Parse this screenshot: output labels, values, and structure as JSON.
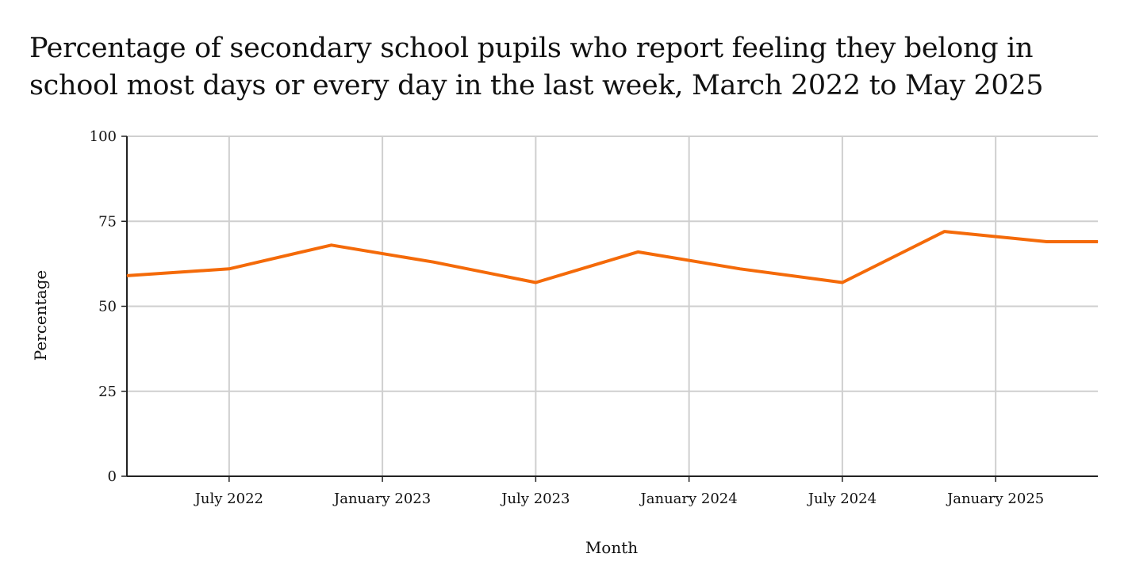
{
  "chart_data": {
    "type": "line",
    "title": "Percentage of secondary school pupils who report feeling they belong in school most days or every day in the last week, March 2022 to May 2025",
    "xlabel": "Month",
    "ylabel": "Percentage",
    "ylim": [
      0,
      100
    ],
    "yticks": [
      0,
      25,
      50,
      75,
      100
    ],
    "xticks": [
      {
        "date": "2022-07",
        "label": "July 2022"
      },
      {
        "date": "2023-01",
        "label": "January 2023"
      },
      {
        "date": "2023-07",
        "label": "July 2023"
      },
      {
        "date": "2024-01",
        "label": "January 2024"
      },
      {
        "date": "2024-07",
        "label": "July 2024"
      },
      {
        "date": "2025-01",
        "label": "January 2025"
      }
    ],
    "xlim": [
      "2022-03",
      "2025-05"
    ],
    "grid": true,
    "line_color": "#f46a09",
    "series": [
      {
        "x": [
          "2022-03",
          "2022-07",
          "2022-11",
          "2023-03",
          "2023-07",
          "2023-11",
          "2024-03",
          "2024-07",
          "2024-11",
          "2025-03",
          "2025-05"
        ],
        "values": [
          59,
          61,
          68,
          63,
          57,
          66,
          61,
          57,
          72,
          69,
          69
        ]
      }
    ]
  }
}
